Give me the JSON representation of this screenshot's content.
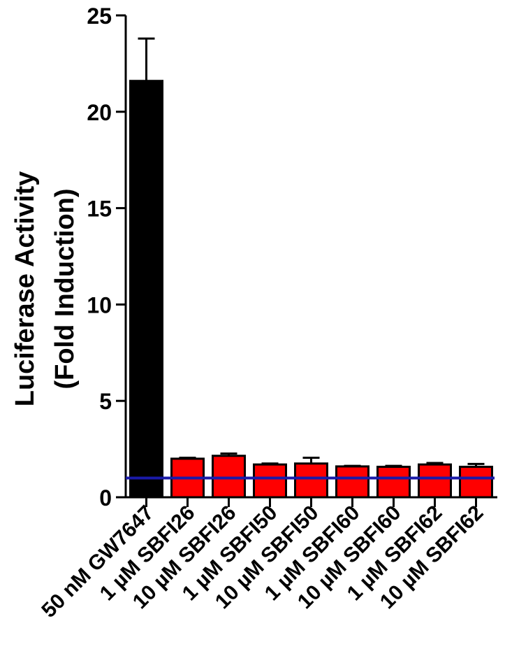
{
  "chart_data": {
    "type": "bar",
    "title": "",
    "xlabel": "",
    "ylabel_line1": "Luciferase Activity",
    "ylabel_line2": "(Fold  Induction)",
    "ylim": [
      0,
      25
    ],
    "yticks": [
      0,
      5,
      10,
      15,
      20,
      25
    ],
    "yticks_labels": [
      "0",
      "5",
      "10",
      "15",
      "20",
      "25"
    ],
    "grid": false,
    "legend": "none",
    "categories": [
      "50 nM GW7647",
      "1 µM SBFI26",
      "10 µM SBFI26",
      "1 µM SBFI50",
      "10 µM SBFI50",
      "1 µM SBFI60",
      "10 µM SBFI60",
      "1 µM SBFI62",
      "10 µM SBFI62"
    ],
    "series": [
      {
        "values": [
          21.6,
          2.0,
          2.15,
          1.7,
          1.75,
          1.6,
          1.58,
          1.7,
          1.58
        ],
        "errors": [
          2.2,
          0.05,
          0.12,
          0.05,
          0.3,
          0.03,
          0.05,
          0.08,
          0.15
        ],
        "colors": [
          "#000000",
          "#ff0000",
          "#ff0000",
          "#ff0000",
          "#ff0000",
          "#ff0000",
          "#ff0000",
          "#ff0000",
          "#ff0000"
        ]
      }
    ],
    "reference_line": {
      "value": 1.0,
      "color": "#1a1aa8"
    },
    "colors": {
      "control": "#000000",
      "treatment": "#ff0000",
      "baseline": "#1a1aa8"
    }
  }
}
